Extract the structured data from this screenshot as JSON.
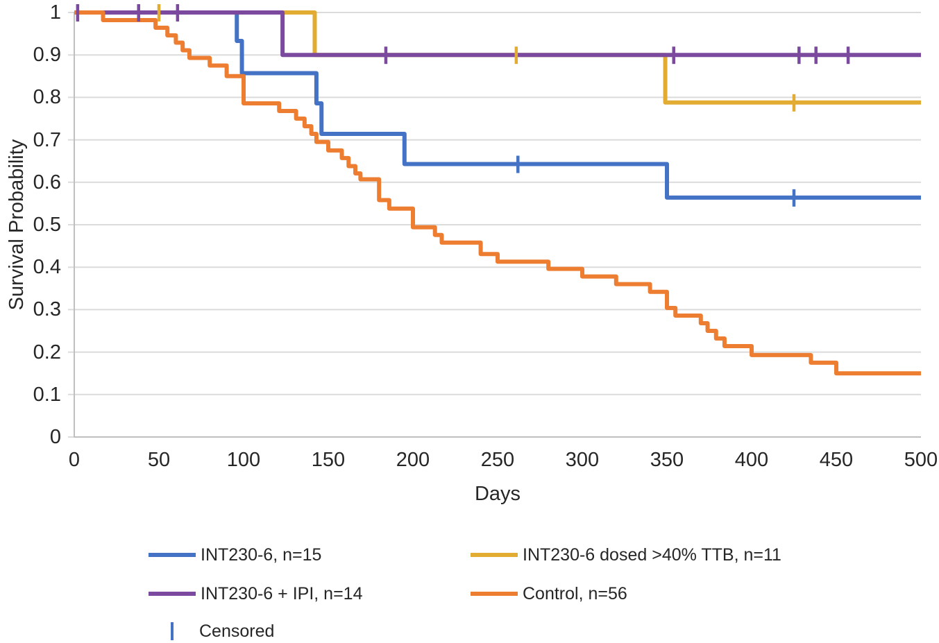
{
  "chart_data": {
    "type": "line",
    "subtype": "kaplan-meier-step-survival",
    "title": "",
    "xlabel": "Days",
    "ylabel": "Survival Probability",
    "xlim": [
      0,
      500
    ],
    "ylim": [
      0,
      1
    ],
    "grid": "horizontal",
    "legend_position": "bottom",
    "x_ticks": [
      {
        "v": 0,
        "label": "0"
      },
      {
        "v": 50,
        "label": "50"
      },
      {
        "v": 100,
        "label": "100"
      },
      {
        "v": 150,
        "label": "150"
      },
      {
        "v": 200,
        "label": "200"
      },
      {
        "v": 250,
        "label": "250"
      },
      {
        "v": 300,
        "label": "300"
      },
      {
        "v": 350,
        "label": "350"
      },
      {
        "v": 400,
        "label": "400"
      },
      {
        "v": 450,
        "label": "450"
      },
      {
        "v": 500,
        "label": "500"
      }
    ],
    "y_ticks": [
      {
        "v": 1,
        "label": "1"
      },
      {
        "v": 0.9,
        "label": "0.9"
      },
      {
        "v": 0.8,
        "label": "0.8"
      },
      {
        "v": 0.7,
        "label": "0.7"
      },
      {
        "v": 0.6,
        "label": "0.6"
      },
      {
        "v": 0.5,
        "label": "0.5"
      },
      {
        "v": 0.4,
        "label": "0.4"
      },
      {
        "v": 0.3,
        "label": "0.3"
      },
      {
        "v": 0.2,
        "label": "0.2"
      },
      {
        "v": 0.1,
        "label": "0.1"
      },
      {
        "v": 0,
        "label": "0"
      }
    ],
    "censored_label": "Censored",
    "colors": {
      "grid": "#DBDBDB",
      "axis": "#BFBFBF",
      "text": "#262626",
      "censored_legend": "#4472C4"
    },
    "series": [
      {
        "id": "int230-6",
        "name": "INT230-6, n=15",
        "n": 15,
        "color": "#4472C4",
        "steps": [
          [
            0,
            1
          ],
          [
            96,
            0.933
          ],
          [
            99,
            0.857
          ],
          [
            143,
            0.786
          ],
          [
            146,
            0.714
          ],
          [
            195,
            0.643
          ],
          [
            350,
            0.564
          ]
        ],
        "end_x": 500,
        "censored": [
          [
            262,
            0.643
          ],
          [
            425,
            0.564
          ]
        ]
      },
      {
        "id": "int230-6-ttb",
        "name": "INT230-6 dosed >40% TTB, n=11",
        "n": 11,
        "color": "#E2AC33",
        "steps": [
          [
            0,
            1
          ],
          [
            142,
            0.9
          ],
          [
            349,
            0.788
          ]
        ],
        "end_x": 500,
        "censored": [
          [
            50,
            1
          ],
          [
            261,
            0.9
          ],
          [
            425,
            0.788
          ]
        ]
      },
      {
        "id": "int230-6-ipi",
        "name": "INT230-6 + IPI, n=14",
        "n": 14,
        "color": "#7B4A9E",
        "steps": [
          [
            0,
            1
          ],
          [
            123,
            0.9
          ]
        ],
        "end_x": 500,
        "censored": [
          [
            2,
            1
          ],
          [
            38,
            1
          ],
          [
            61,
            1
          ],
          [
            184,
            0.9
          ],
          [
            354,
            0.9
          ],
          [
            428,
            0.9
          ],
          [
            438,
            0.9
          ],
          [
            457,
            0.9
          ]
        ]
      },
      {
        "id": "control",
        "name": "Control, n=56",
        "n": 56,
        "color": "#ED7D31",
        "steps": [
          [
            0,
            1
          ],
          [
            17,
            0.982
          ],
          [
            48,
            0.964
          ],
          [
            55,
            0.946
          ],
          [
            60,
            0.929
          ],
          [
            64,
            0.911
          ],
          [
            68,
            0.893
          ],
          [
            80,
            0.875
          ],
          [
            90,
            0.85
          ],
          [
            100,
            0.786
          ],
          [
            121,
            0.768
          ],
          [
            131,
            0.75
          ],
          [
            136,
            0.732
          ],
          [
            140,
            0.714
          ],
          [
            143,
            0.695
          ],
          [
            150,
            0.675
          ],
          [
            158,
            0.657
          ],
          [
            162,
            0.638
          ],
          [
            166,
            0.621
          ],
          [
            169,
            0.607
          ],
          [
            180,
            0.558
          ],
          [
            186,
            0.538
          ],
          [
            200,
            0.494
          ],
          [
            213,
            0.476
          ],
          [
            217,
            0.458
          ],
          [
            240,
            0.431
          ],
          [
            250,
            0.413
          ],
          [
            280,
            0.396
          ],
          [
            300,
            0.378
          ],
          [
            320,
            0.36
          ],
          [
            340,
            0.342
          ],
          [
            350,
            0.304
          ],
          [
            355,
            0.286
          ],
          [
            370,
            0.268
          ],
          [
            374,
            0.25
          ],
          [
            379,
            0.232
          ],
          [
            384,
            0.214
          ],
          [
            400,
            0.193
          ],
          [
            435,
            0.175
          ],
          [
            450,
            0.15
          ]
        ],
        "end_x": 500,
        "censored": []
      }
    ]
  }
}
